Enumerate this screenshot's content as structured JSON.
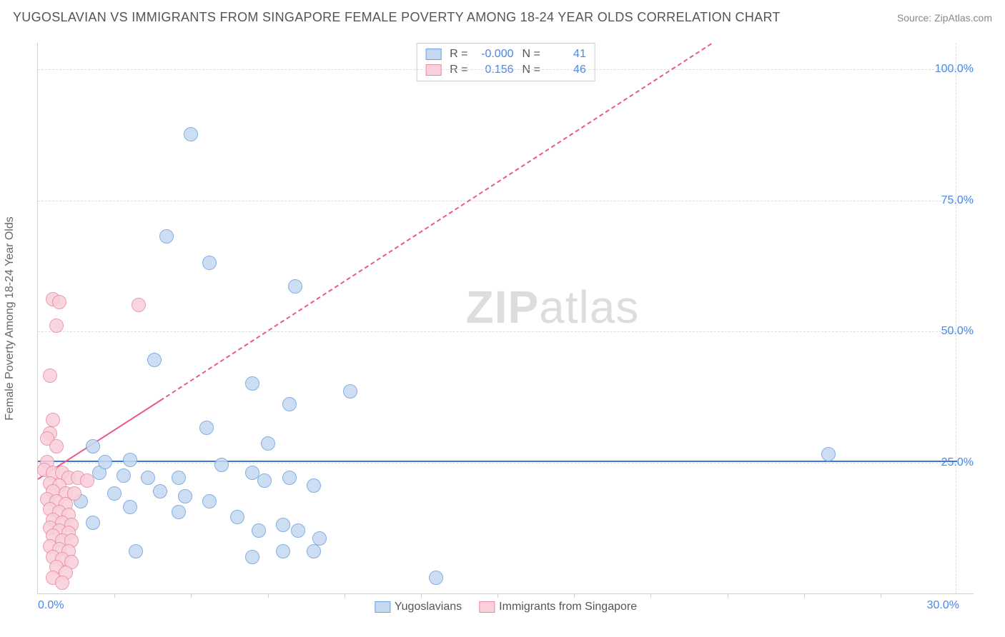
{
  "header": {
    "title": "YUGOSLAVIAN VS IMMIGRANTS FROM SINGAPORE FEMALE POVERTY AMONG 18-24 YEAR OLDS CORRELATION CHART",
    "source": "Source: ZipAtlas.com"
  },
  "chart": {
    "type": "scatter",
    "ylabel": "Female Poverty Among 18-24 Year Olds",
    "xlim": [
      0,
      30
    ],
    "ylim": [
      0,
      105
    ],
    "ytick_values": [
      25,
      50,
      75,
      100
    ],
    "ytick_labels": [
      "25.0%",
      "50.0%",
      "75.0%",
      "100.0%"
    ],
    "xtick_origin": "0.0%",
    "xtick_end": "30.0%",
    "xtick_minor": [
      2.5,
      5,
      7.5,
      10,
      12.5,
      15,
      17.5,
      20,
      22.5,
      25,
      27.5
    ],
    "grid_color": "#dddddd",
    "ytick_color": "#4a86e8",
    "xtick_color": "#4a86e8",
    "background_color": "#ffffff",
    "marker_radius": 10,
    "marker_border_width": 1.5,
    "series": [
      {
        "name": "Yugoslavians",
        "fill": "#c5d9f1",
        "stroke": "#6fa0e0",
        "trend_color": "#3b78d8",
        "trend_solid": {
          "x1": 0,
          "y1": 25.5,
          "x2": 30,
          "y2": 25.5
        },
        "trend_dash": null,
        "R": "-0.000",
        "N": "41",
        "points": [
          [
            5.0,
            87.5
          ],
          [
            4.2,
            68.0
          ],
          [
            5.6,
            63.0
          ],
          [
            8.4,
            58.5
          ],
          [
            3.8,
            44.5
          ],
          [
            7.0,
            40.0
          ],
          [
            10.2,
            38.5
          ],
          [
            8.2,
            36.0
          ],
          [
            5.5,
            31.5
          ],
          [
            7.5,
            28.5
          ],
          [
            2.0,
            23.0
          ],
          [
            2.8,
            22.5
          ],
          [
            3.6,
            22.0
          ],
          [
            4.6,
            22.0
          ],
          [
            7.0,
            23.0
          ],
          [
            7.4,
            21.5
          ],
          [
            8.2,
            22.0
          ],
          [
            9.0,
            20.5
          ],
          [
            4.0,
            19.5
          ],
          [
            4.8,
            18.5
          ],
          [
            5.6,
            17.5
          ],
          [
            3.0,
            16.5
          ],
          [
            4.6,
            15.5
          ],
          [
            6.5,
            14.5
          ],
          [
            8.0,
            13.0
          ],
          [
            7.2,
            12.0
          ],
          [
            8.5,
            12.0
          ],
          [
            9.2,
            10.5
          ],
          [
            8.0,
            8.0
          ],
          [
            9.0,
            8.0
          ],
          [
            3.2,
            8.0
          ],
          [
            7.0,
            7.0
          ],
          [
            13.0,
            3.0
          ],
          [
            25.8,
            26.5
          ],
          [
            1.8,
            28.0
          ],
          [
            2.2,
            25.0
          ],
          [
            2.5,
            19.0
          ],
          [
            1.4,
            17.5
          ],
          [
            1.8,
            13.5
          ],
          [
            3.0,
            25.5
          ],
          [
            6.0,
            24.5
          ]
        ]
      },
      {
        "name": "Immigrants from Singapore",
        "fill": "#f9d0da",
        "stroke": "#e88aa3",
        "trend_color": "#e85a8a",
        "trend_solid": {
          "x1": 0,
          "y1": 22.0,
          "x2": 4.0,
          "y2": 37.0
        },
        "trend_dash": {
          "x1": 4.0,
          "y1": 37.0,
          "x2": 22.0,
          "y2": 105.0
        },
        "R": "0.156",
        "N": "46",
        "points": [
          [
            0.5,
            56.0
          ],
          [
            0.7,
            55.5
          ],
          [
            3.3,
            55.0
          ],
          [
            0.6,
            51.0
          ],
          [
            0.4,
            41.5
          ],
          [
            0.5,
            33.0
          ],
          [
            0.4,
            30.5
          ],
          [
            0.3,
            29.5
          ],
          [
            0.6,
            28.0
          ],
          [
            0.3,
            25.0
          ],
          [
            0.2,
            23.5
          ],
          [
            0.5,
            23.0
          ],
          [
            0.8,
            23.0
          ],
          [
            1.0,
            22.0
          ],
          [
            1.3,
            22.0
          ],
          [
            1.6,
            21.5
          ],
          [
            0.4,
            21.0
          ],
          [
            0.7,
            20.5
          ],
          [
            0.5,
            19.5
          ],
          [
            0.9,
            19.0
          ],
          [
            1.2,
            19.0
          ],
          [
            0.3,
            18.0
          ],
          [
            0.6,
            17.5
          ],
          [
            0.9,
            17.0
          ],
          [
            0.4,
            16.0
          ],
          [
            0.7,
            15.5
          ],
          [
            1.0,
            15.0
          ],
          [
            0.5,
            14.0
          ],
          [
            0.8,
            13.5
          ],
          [
            1.1,
            13.0
          ],
          [
            0.4,
            12.5
          ],
          [
            0.7,
            12.0
          ],
          [
            1.0,
            11.5
          ],
          [
            0.5,
            11.0
          ],
          [
            0.8,
            10.0
          ],
          [
            1.1,
            10.0
          ],
          [
            0.4,
            9.0
          ],
          [
            0.7,
            8.5
          ],
          [
            1.0,
            8.0
          ],
          [
            0.5,
            7.0
          ],
          [
            0.8,
            6.5
          ],
          [
            1.1,
            6.0
          ],
          [
            0.6,
            5.0
          ],
          [
            0.9,
            4.0
          ],
          [
            0.5,
            3.0
          ],
          [
            0.8,
            2.0
          ]
        ]
      }
    ]
  },
  "legend": {
    "stats_label_R": "R =",
    "stats_label_N": "N =",
    "value_color": "#4a86e8",
    "series1_label": "Yugoslavians",
    "series2_label": "Immigrants from Singapore"
  },
  "watermark": {
    "part1": "ZIP",
    "part2": "atlas"
  }
}
